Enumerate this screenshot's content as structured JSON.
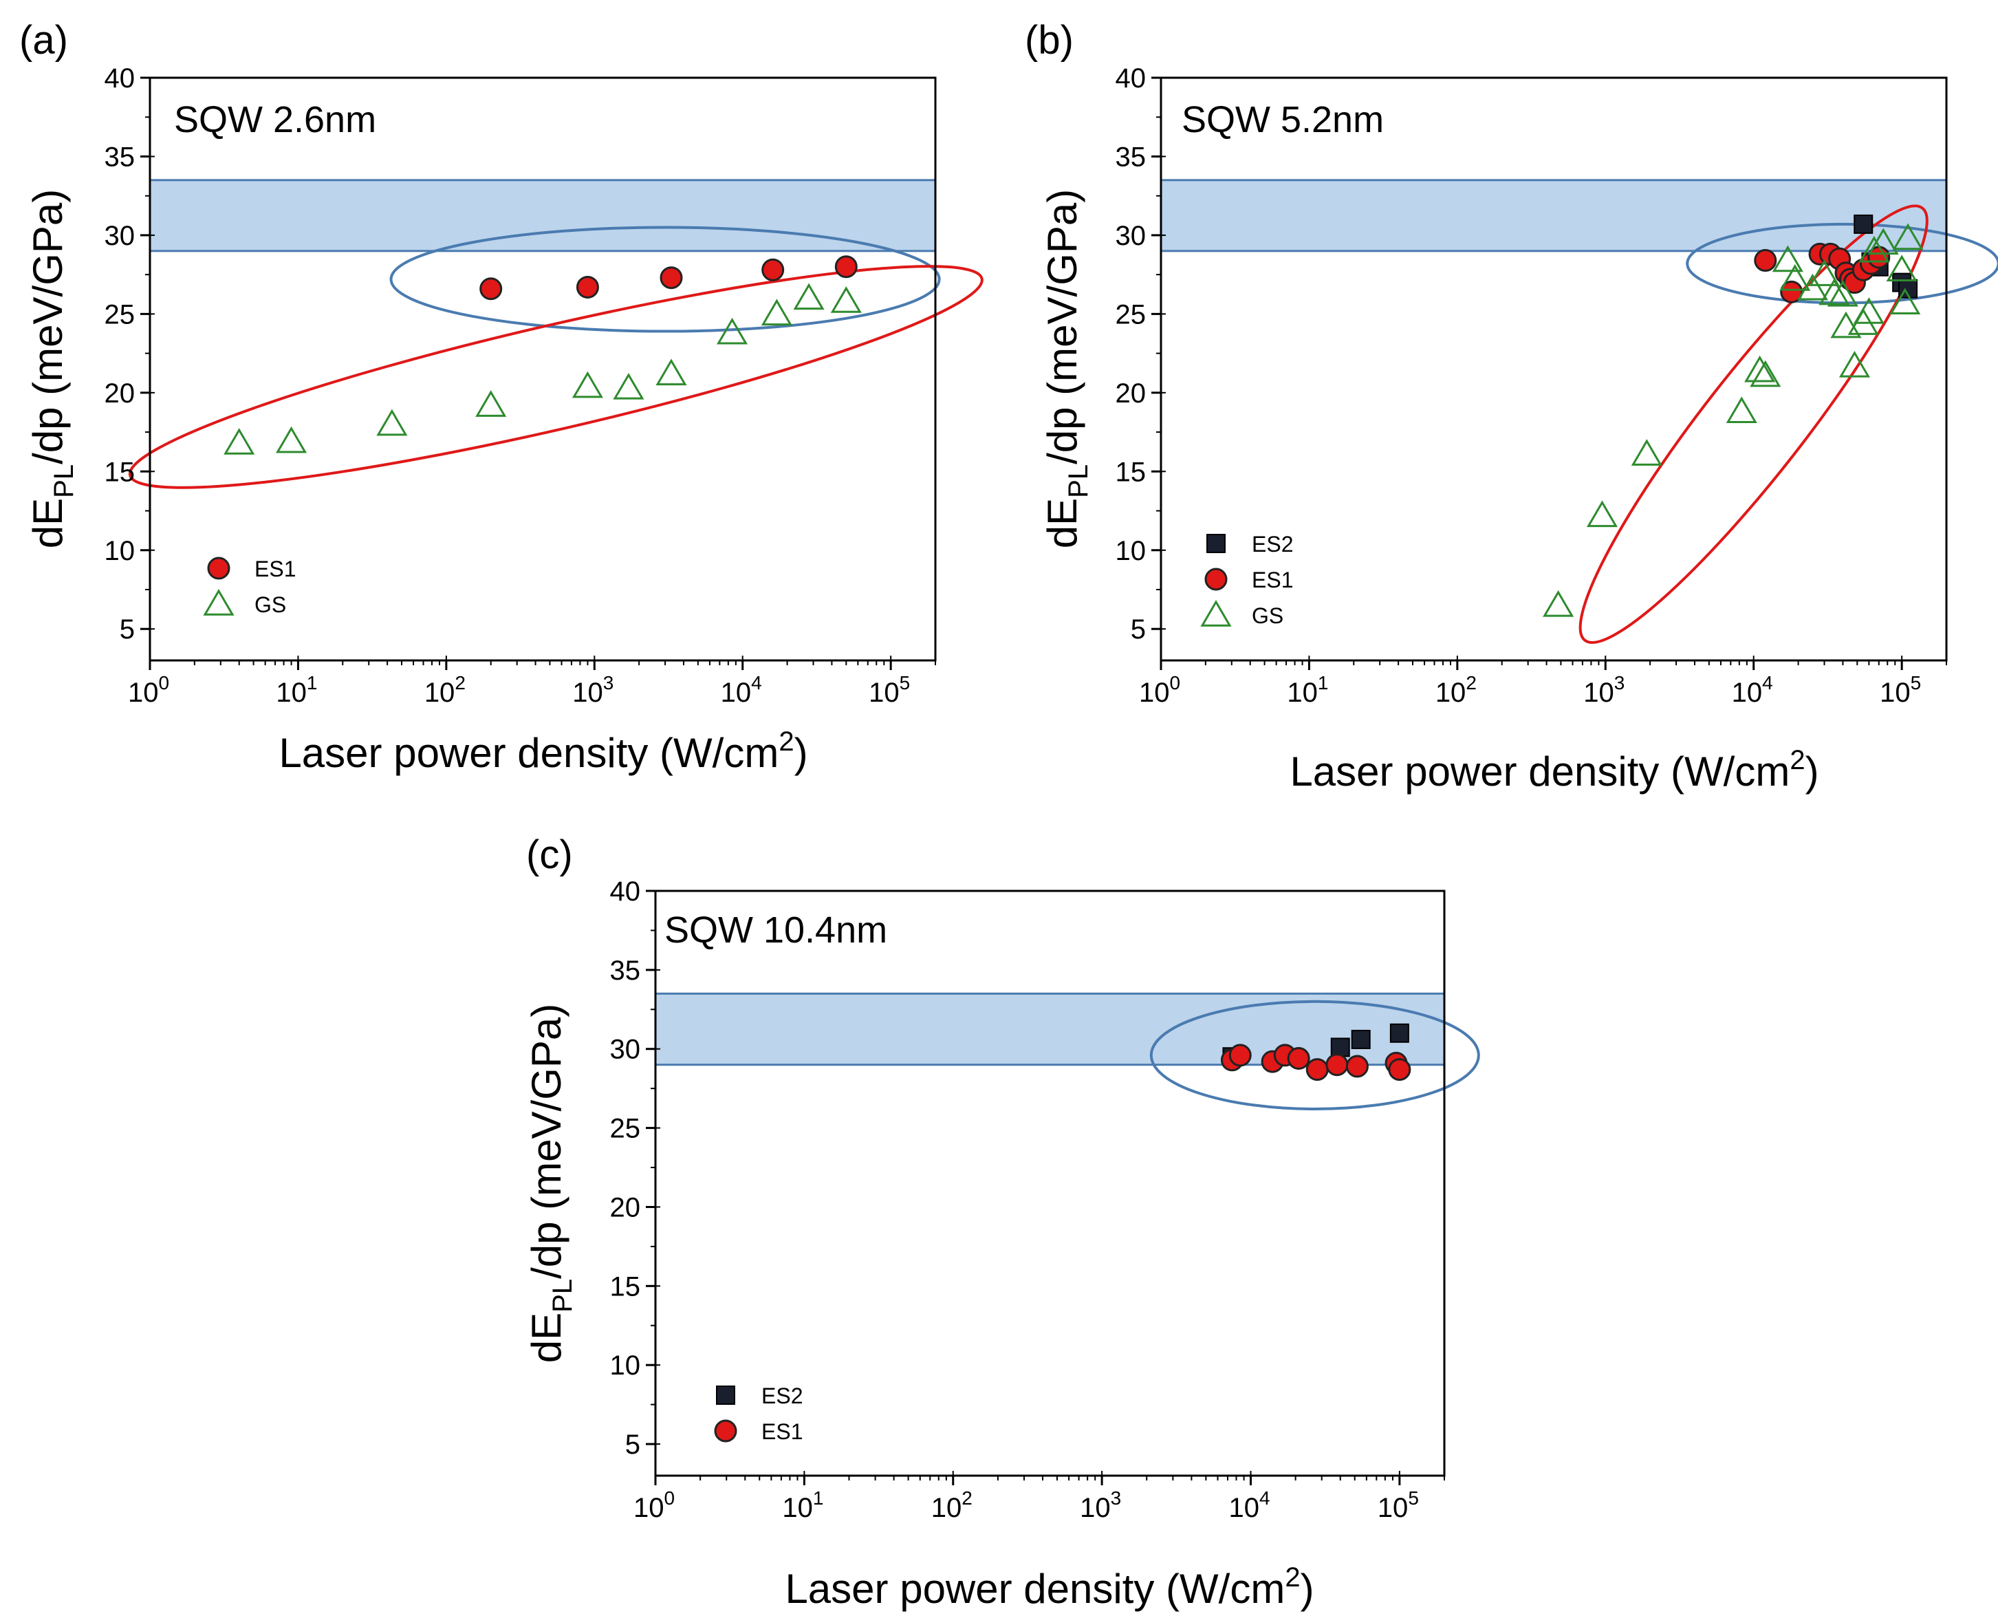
{
  "chart_data": [
    {
      "type": "scatter",
      "panel_label": "(a)",
      "annotation": "SQW 2.6nm",
      "xlabel": "Laser power density (W/cm",
      "xlabel_sup": "2",
      "xlabel_end": ")",
      "ylabel_main": "dE",
      "ylabel_sub": "PL",
      "ylabel_end": "/dp (meV/GPa)",
      "x_scale": "log",
      "xlim": [
        1,
        200000
      ],
      "ylim": [
        3,
        40
      ],
      "x_ticks": [
        {
          "base": "10",
          "exp": "0",
          "value": 1
        },
        {
          "base": "10",
          "exp": "1",
          "value": 10
        },
        {
          "base": "10",
          "exp": "2",
          "value": 100
        },
        {
          "base": "10",
          "exp": "3",
          "value": 1000
        },
        {
          "base": "10",
          "exp": "4",
          "value": 10000
        },
        {
          "base": "10",
          "exp": "5",
          "value": 100000
        }
      ],
      "y_ticks": [
        "5",
        "10",
        "15",
        "20",
        "25",
        "30",
        "35",
        "40"
      ],
      "band": {
        "y_min": 29,
        "y_max": 33.5,
        "color": "#bcd4ec",
        "edge": "#4a7bb0"
      },
      "legend_position": "bottom-left",
      "series": [
        {
          "name": "ES1",
          "marker": "circle",
          "color": "#e01818",
          "x": [
            200,
            900,
            3300,
            16000,
            50000
          ],
          "y": [
            26.6,
            26.7,
            27.3,
            27.8,
            28.0
          ]
        },
        {
          "name": "GS",
          "marker": "triangle",
          "color": "#2e8b2e",
          "x": [
            4,
            9,
            43,
            200,
            900,
            1700,
            3300,
            8500,
            17000,
            28000,
            50000
          ],
          "y": [
            16.8,
            16.9,
            18.0,
            19.2,
            20.4,
            20.3,
            21.2,
            23.8,
            25.0,
            26.0,
            25.8
          ]
        }
      ],
      "ellipses": [
        {
          "color": "#4a7bb0",
          "x_center": 3000,
          "y_center": 27.2,
          "rx_decades": 1.85,
          "ry": 3.3,
          "angle_deg": 0
        },
        {
          "color": "#e01818",
          "x_center": 550,
          "y_center": 21.0,
          "rx_decades": 2.95,
          "ry": 3.3,
          "angle_deg": -13
        }
      ]
    },
    {
      "type": "scatter",
      "panel_label": "(b)",
      "annotation": "SQW  5.2nm",
      "xlabel": "Laser power density (W/cm",
      "xlabel_sup": "2",
      "xlabel_end": ")",
      "ylabel_main": "dE",
      "ylabel_sub": "PL",
      "ylabel_end": "/dp (meV/GPa)",
      "x_scale": "log",
      "xlim": [
        1,
        200000
      ],
      "ylim": [
        3,
        40
      ],
      "x_ticks": [
        {
          "base": "10",
          "exp": "0",
          "value": 1
        },
        {
          "base": "10",
          "exp": "1",
          "value": 10
        },
        {
          "base": "10",
          "exp": "2",
          "value": 100
        },
        {
          "base": "10",
          "exp": "3",
          "value": 1000
        },
        {
          "base": "10",
          "exp": "4",
          "value": 10000
        },
        {
          "base": "10",
          "exp": "5",
          "value": 100000
        }
      ],
      "y_ticks": [
        "5",
        "10",
        "15",
        "20",
        "25",
        "30",
        "35",
        "40"
      ],
      "band": {
        "y_min": 29,
        "y_max": 33.5,
        "color": "#bcd4ec",
        "edge": "#4a7bb0"
      },
      "legend_position": "bottom-left",
      "series": [
        {
          "name": "ES2",
          "marker": "square",
          "color": "#000000",
          "x": [
            55000,
            62000,
            70000,
            100000,
            110000
          ],
          "y": [
            30.7,
            28.3,
            28.0,
            27.0,
            26.6
          ]
        },
        {
          "name": "ES1",
          "marker": "circle",
          "color": "#e01818",
          "x": [
            12000,
            18000,
            28000,
            33000,
            38000,
            42000,
            45000,
            48000,
            55000,
            62000,
            70000
          ],
          "y": [
            28.4,
            26.4,
            28.8,
            28.8,
            28.5,
            27.6,
            27.2,
            27.0,
            27.8,
            28.2,
            28.6
          ]
        },
        {
          "name": "GS",
          "marker": "triangle",
          "color": "#2e8b2e",
          "x": [
            480,
            950,
            1900,
            8300,
            11000,
            12000,
            17000,
            19000,
            25000,
            30000,
            35000,
            40000,
            42000,
            48000,
            55000,
            60000,
            65000,
            75000,
            100000,
            105000,
            110000
          ],
          "y": [
            6.5,
            12.2,
            16.1,
            18.8,
            21.4,
            21.1,
            28.4,
            27.2,
            26.6,
            27.5,
            26.3,
            26.2,
            24.2,
            21.7,
            24.4,
            25.1,
            29.0,
            29.5,
            27.8,
            25.7,
            29.8
          ]
        }
      ],
      "ellipses": [
        {
          "color": "#4a7bb0",
          "x_center": 40000,
          "y_center": 28.2,
          "rx_decades": 1.05,
          "ry": 2.5,
          "angle_deg": 0
        },
        {
          "color": "#e01818",
          "x_center": 10000,
          "y_center": 18.0,
          "rx_decades": 1.85,
          "ry": 3.2,
          "angle_deg": -52
        }
      ]
    },
    {
      "type": "scatter",
      "panel_label": "(c)",
      "annotation": "SQW 10.4nm",
      "xlabel": "Laser power density (W/cm",
      "xlabel_sup": "2",
      "xlabel_end": ")",
      "ylabel_main": "dE",
      "ylabel_sub": "PL",
      "ylabel_end": "/dp (meV/GPa)",
      "x_scale": "log",
      "xlim": [
        1,
        200000
      ],
      "ylim": [
        3,
        40
      ],
      "x_ticks": [
        {
          "base": "10",
          "exp": "0",
          "value": 1
        },
        {
          "base": "10",
          "exp": "1",
          "value": 10
        },
        {
          "base": "10",
          "exp": "2",
          "value": 100
        },
        {
          "base": "10",
          "exp": "3",
          "value": 1000
        },
        {
          "base": "10",
          "exp": "4",
          "value": 10000
        },
        {
          "base": "10",
          "exp": "5",
          "value": 100000
        }
      ],
      "y_ticks": [
        "5",
        "10",
        "15",
        "20",
        "25",
        "30",
        "35",
        "40"
      ],
      "band": {
        "y_min": 29,
        "y_max": 33.5,
        "color": "#bcd4ec",
        "edge": "#4a7bb0"
      },
      "legend_position": "bottom-left",
      "series": [
        {
          "name": "ES2",
          "marker": "square",
          "color": "#000000",
          "x": [
            7500,
            40000,
            55000,
            100000
          ],
          "y": [
            29.5,
            30.1,
            30.6,
            31.0
          ]
        },
        {
          "name": "ES1",
          "marker": "circle",
          "color": "#e01818",
          "x": [
            7500,
            8500,
            14000,
            17000,
            21000,
            28000,
            38000,
            52000,
            95000,
            100000
          ],
          "y": [
            29.3,
            29.6,
            29.2,
            29.6,
            29.4,
            28.7,
            29.0,
            28.9,
            29.1,
            28.7
          ]
        }
      ],
      "ellipses": [
        {
          "color": "#4a7bb0",
          "x_center": 27000,
          "y_center": 29.6,
          "rx_decades": 1.1,
          "ry": 3.4,
          "angle_deg": 0
        }
      ]
    }
  ]
}
